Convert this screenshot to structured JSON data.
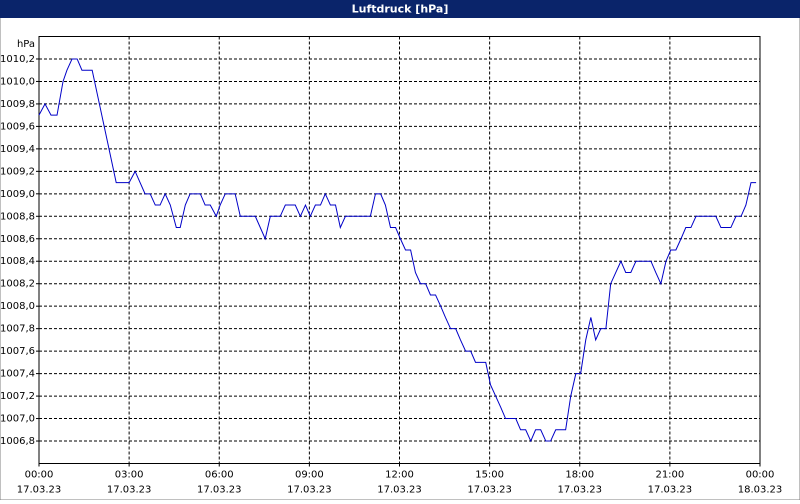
{
  "chart_data": {
    "type": "line",
    "title": "Luftdruck [hPa]",
    "y_label": "hPa",
    "xlim": [
      0,
      24
    ],
    "xticks": [
      {
        "value": 0,
        "label": "00:00",
        "date": "17.03.23"
      },
      {
        "value": 3,
        "label": "03:00",
        "date": "17.03.23"
      },
      {
        "value": 6,
        "label": "06:00",
        "date": "17.03.23"
      },
      {
        "value": 9,
        "label": "09:00",
        "date": "17.03.23"
      },
      {
        "value": 12,
        "label": "12:00",
        "date": "17.03.23"
      },
      {
        "value": 15,
        "label": "15:00",
        "date": "17.03.23"
      },
      {
        "value": 18,
        "label": "18:00",
        "date": "17.03.23"
      },
      {
        "value": 21,
        "label": "21:00",
        "date": "17.03.23"
      },
      {
        "value": 24,
        "label": "00:00",
        "date": "18.03.23"
      }
    ],
    "ylim": [
      1006.6,
      1010.4
    ],
    "yticks": [
      {
        "value": 1006.8,
        "label": "1006,8"
      },
      {
        "value": 1007.0,
        "label": "1007,0"
      },
      {
        "value": 1007.2,
        "label": "1007,2"
      },
      {
        "value": 1007.4,
        "label": "1007,4"
      },
      {
        "value": 1007.6,
        "label": "1007,6"
      },
      {
        "value": 1007.8,
        "label": "1007,8"
      },
      {
        "value": 1008.0,
        "label": "1008,0"
      },
      {
        "value": 1008.2,
        "label": "1008,2"
      },
      {
        "value": 1008.4,
        "label": "1008,4"
      },
      {
        "value": 1008.6,
        "label": "1008,6"
      },
      {
        "value": 1008.8,
        "label": "1008,8"
      },
      {
        "value": 1009.0,
        "label": "1009,0"
      },
      {
        "value": 1009.2,
        "label": "1009,2"
      },
      {
        "value": 1009.4,
        "label": "1009,4"
      },
      {
        "value": 1009.6,
        "label": "1009,6"
      },
      {
        "value": 1009.8,
        "label": "1009,8"
      },
      {
        "value": 1010.0,
        "label": "1010,0"
      },
      {
        "value": 1010.2,
        "label": "1010,2"
      }
    ],
    "grid": true,
    "x": [
      0,
      0.2,
      0.4,
      0.6,
      0.8,
      0.93,
      1.1,
      1.27,
      1.43,
      1.77,
      1.93,
      2.57,
      3.0,
      3.2,
      3.53,
      3.7,
      3.87,
      4.03,
      4.2,
      4.37,
      4.57,
      4.7,
      4.87,
      5.03,
      5.37,
      5.53,
      5.7,
      5.9,
      6.03,
      6.2,
      6.53,
      6.7,
      7.2,
      7.53,
      7.7,
      8.03,
      8.2,
      8.53,
      8.7,
      8.87,
      9.03,
      9.2,
      9.37,
      9.53,
      9.7,
      9.87,
      10.03,
      10.2,
      11.03,
      11.2,
      11.37,
      11.53,
      11.7,
      11.87,
      12.03,
      12.2,
      12.37,
      12.53,
      12.7,
      12.87,
      13.03,
      13.2,
      13.37,
      13.53,
      13.7,
      13.87,
      14.03,
      14.2,
      14.37,
      14.53,
      14.87,
      15.03,
      15.2,
      15.37,
      15.53,
      15.87,
      16.03,
      16.2,
      16.37,
      16.53,
      16.7,
      16.87,
      17.03,
      17.2,
      17.53,
      17.7,
      17.87,
      18.03,
      18.2,
      18.37,
      18.53,
      18.7,
      18.87,
      19.03,
      19.2,
      19.37,
      19.53,
      19.7,
      19.87,
      20.37,
      20.53,
      20.7,
      20.87,
      21.03,
      21.2,
      21.37,
      21.53,
      21.7,
      21.87,
      22.53,
      22.7,
      23.03,
      23.2,
      23.37,
      23.53,
      23.7,
      23.87
    ],
    "series": [
      {
        "name": "Luftdruck",
        "color": "#0000c8",
        "values": [
          1009.7,
          1009.8,
          1009.7,
          1009.7,
          1010.0,
          1010.1,
          1010.2,
          1010.2,
          1010.1,
          1010.1,
          1009.9,
          1009.1,
          1009.1,
          1009.2,
          1009.0,
          1009.0,
          1008.9,
          1008.9,
          1009.0,
          1008.9,
          1008.7,
          1008.7,
          1008.9,
          1009.0,
          1009.0,
          1008.9,
          1008.9,
          1008.8,
          1008.9,
          1009.0,
          1009.0,
          1008.8,
          1008.8,
          1008.6,
          1008.8,
          1008.8,
          1008.9,
          1008.9,
          1008.8,
          1008.9,
          1008.8,
          1008.9,
          1008.9,
          1009.0,
          1008.9,
          1008.9,
          1008.7,
          1008.8,
          1008.8,
          1009.0,
          1009.0,
          1008.9,
          1008.7,
          1008.7,
          1008.6,
          1008.5,
          1008.5,
          1008.3,
          1008.2,
          1008.2,
          1008.1,
          1008.1,
          1008.0,
          1007.9,
          1007.8,
          1007.8,
          1007.7,
          1007.6,
          1007.6,
          1007.5,
          1007.5,
          1007.3,
          1007.2,
          1007.1,
          1007.0,
          1007.0,
          1006.9,
          1006.9,
          1006.8,
          1006.9,
          1006.9,
          1006.8,
          1006.8,
          1006.9,
          1006.9,
          1007.2,
          1007.4,
          1007.4,
          1007.7,
          1007.9,
          1007.7,
          1007.8,
          1007.8,
          1008.2,
          1008.3,
          1008.4,
          1008.3,
          1008.3,
          1008.4,
          1008.4,
          1008.3,
          1008.2,
          1008.4,
          1008.5,
          1008.5,
          1008.6,
          1008.7,
          1008.7,
          1008.8,
          1008.8,
          1008.7,
          1008.7,
          1008.8,
          1008.8,
          1008.9,
          1009.1,
          1009.1
        ]
      }
    ]
  }
}
